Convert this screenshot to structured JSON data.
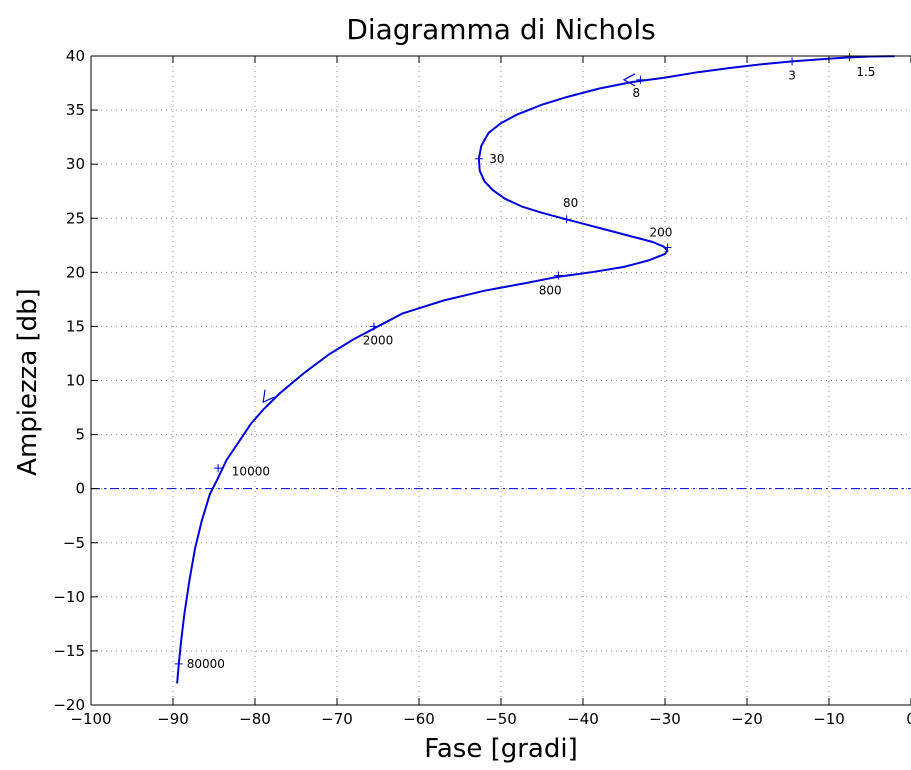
{
  "chart_data": {
    "type": "line",
    "title": "Diagramma di Nichols",
    "xlabel": "Fase [gradi]",
    "ylabel": "Ampiezza [db]",
    "xlim": [
      -100,
      0
    ],
    "ylim": [
      -20,
      40
    ],
    "x_ticks": [
      -100,
      -90,
      -80,
      -70,
      -60,
      -50,
      -40,
      -30,
      -20,
      -10,
      0
    ],
    "y_ticks": [
      -20,
      -15,
      -10,
      -5,
      0,
      5,
      10,
      15,
      20,
      25,
      30,
      35,
      40
    ],
    "x_tick_labels": [
      "−100",
      "−90",
      "−80",
      "−70",
      "−60",
      "−50",
      "−40",
      "−30",
      "−20",
      "−10",
      "0"
    ],
    "y_tick_labels": [
      "−20",
      "−15",
      "−10",
      "−5",
      "0",
      "5",
      "10",
      "15",
      "20",
      "25",
      "30",
      "35",
      "40"
    ],
    "grid": true,
    "colors": {
      "curve": "#0000dd",
      "zero_line": "#0000dd",
      "grid": "#888888"
    },
    "reference_lines": [
      {
        "axis": "y",
        "value": 0,
        "style": "dash-dot"
      }
    ],
    "series": [
      {
        "x": [
          -2,
          -5,
          -8,
          -11,
          -14.5,
          -18,
          -22,
          -26,
          -30,
          -34,
          -38,
          -42,
          -45,
          -48,
          -50,
          -51.5,
          -52.4,
          -52.7,
          -52.6,
          -52,
          -51,
          -49.5,
          -47.5,
          -45,
          -42.5,
          -40,
          -37,
          -34,
          -31.5,
          -30.2,
          -29.7,
          -30,
          -32,
          -35,
          -39,
          -43,
          -47,
          -52,
          -57,
          -62,
          -65,
          -68,
          -71,
          -74,
          -77,
          -79,
          -80.5,
          -82,
          -83.5,
          -84.5,
          -85.5,
          -86.5,
          -87.3,
          -88,
          -88.6,
          -89,
          -89.3,
          -89.5
        ],
        "y": [
          39.98,
          39.95,
          39.85,
          39.7,
          39.5,
          39.25,
          38.9,
          38.5,
          38.0,
          37.6,
          37.0,
          36.2,
          35.5,
          34.6,
          33.8,
          32.9,
          31.7,
          30.5,
          29.4,
          28.4,
          27.6,
          26.8,
          26.1,
          25.5,
          25.0,
          24.5,
          23.9,
          23.3,
          22.8,
          22.4,
          22.0,
          21.7,
          21.1,
          20.5,
          20.0,
          19.6,
          19.0,
          18.3,
          17.4,
          16.2,
          15.0,
          13.8,
          12.4,
          10.7,
          8.8,
          7.3,
          6.0,
          4.3,
          2.6,
          1.0,
          -0.5,
          -3.0,
          -5.5,
          -8.5,
          -11.5,
          -14.0,
          -16.3,
          -18.0
        ]
      }
    ],
    "frequency_marks": [
      {
        "label": "1.5",
        "x": -7.5,
        "y": 39.9,
        "label_x": -5.5,
        "label_y": 38.5
      },
      {
        "label": "3",
        "x": -14.5,
        "y": 39.5,
        "label_x": -14.5,
        "label_y": 38.2
      },
      {
        "label": "8",
        "x": -33,
        "y": 37.8,
        "label_x": -33.5,
        "label_y": 36.6
      },
      {
        "label": "30",
        "x": -52.7,
        "y": 30.5,
        "label_x": -50.5,
        "label_y": 30.5
      },
      {
        "label": "80",
        "x": -42,
        "y": 24.9,
        "label_x": -41.5,
        "label_y": 26.4
      },
      {
        "label": "200",
        "x": -29.7,
        "y": 22.3,
        "label_x": -30.5,
        "label_y": 23.7
      },
      {
        "label": "800",
        "x": -43,
        "y": 19.7,
        "label_x": -44,
        "label_y": 18.3
      },
      {
        "label": "2000",
        "x": -65.5,
        "y": 15.0,
        "label_x": -65,
        "label_y": 13.7
      },
      {
        "label": "10000",
        "x": -84.5,
        "y": 1.9,
        "label_x": -80.5,
        "label_y": 1.6
      },
      {
        "label": "80000",
        "x": -89.3,
        "y": -16.2,
        "label_x": -86,
        "label_y": -16.2
      }
    ],
    "arrows": [
      {
        "x": -35,
        "y": 37.8,
        "direction": "left"
      },
      {
        "x": -79,
        "y": 8.0,
        "direction": "down-left"
      }
    ]
  }
}
